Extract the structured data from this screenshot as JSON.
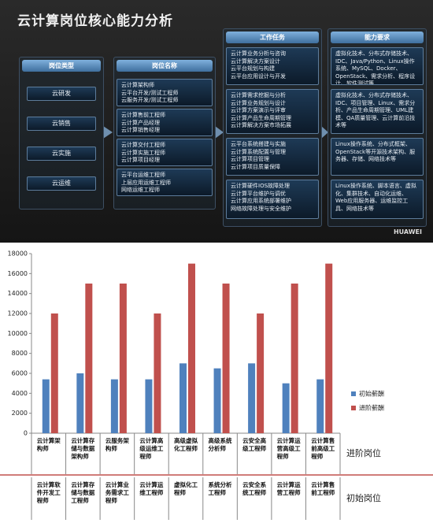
{
  "diagram": {
    "title": "云计算岗位核心能力分析",
    "brand": "HUAWEI",
    "column_headers": [
      "岗位类型",
      "岗位名称",
      "工作任务",
      "能力要求"
    ],
    "job_types": [
      "云研发",
      "云销售",
      "云实施",
      "云运维"
    ],
    "job_names": [
      [
        "云计算架构师",
        "云平台开发/测试工程师",
        "云服务开发/测试工程师"
      ],
      [
        "云计算售前工程师",
        "云计算产品经理",
        "云计算销售经理"
      ],
      [
        "云计算交付工程师",
        "云计算实施工程师",
        "云计算项目经理"
      ],
      [
        "云平台运维工程师",
        "上层应用运维工程师",
        "网络运维工程师"
      ]
    ],
    "tasks": [
      [
        "云计算业务分析与咨询",
        "云计算解决方案设计",
        "云平台规划与构建",
        "云平台应用设计与开发"
      ],
      [
        "云计算需求挖掘与分析",
        "云计算业务规划与设计",
        "云计算方案演示与评审",
        "云计算产品生命周期管理",
        "云计算解决方案市场拓展"
      ],
      [
        "云平台系统搭建与实施",
        "云计算系统配置与管理",
        "云计算项目管理",
        "云计算项目质量保障"
      ],
      [
        "云计算硬件IOS故障处理",
        "云计算平台维护与调优",
        "云计算应用系统部署维护",
        "网络故障处理与安全维护"
      ]
    ],
    "skills": [
      "虚拟化技术、分布式存储技术、IDC、Java/Python、Linux操作系统、MySQL、Docker、OpenStack、需求分析、程序设计、软件测试等",
      "虚拟化技术、分布式存储技术、IDC、项目管理、Linux、需求分析、产品生命周期管理、UML建模、QA质量管理、云计算前沿技术等",
      "Linux操作系统、分布式框架、OpenStack等开源技术架构、服务器、存储、网络技术等",
      "Linux操作系统、脚本语言、虚拟化、集群技术、自动化运维、Web应用服务器、运维监控工具、网络技术等"
    ]
  },
  "chart_data": {
    "type": "bar",
    "categories": [
      "云计算架构师",
      "云计算存储与数据架构师",
      "云服务架构师",
      "云计算高级运维工程师",
      "高级虚拟化工程师",
      "高级系统分析师",
      "云安全高级工程师",
      "云计算运营高级工程师",
      "云计算售前高级工程师"
    ],
    "initial_roles": [
      "云计算软件开发工程师",
      "云计算存储与数据工程师",
      "云计算业务需求工程师",
      "云计算运维工程师",
      "虚拟化工程师",
      "系统分析工程师",
      "云安全系统工程师",
      "云计算运营工程师",
      "云计算售前工程师"
    ],
    "row_labels": [
      "进阶岗位",
      "初始岗位"
    ],
    "series": [
      {
        "name": "初始薪酬",
        "color": "#4f81bd",
        "values": [
          5400,
          6000,
          5400,
          5400,
          7000,
          6500,
          7000,
          5000,
          5400
        ]
      },
      {
        "name": "进阶薪酬",
        "color": "#c0504d",
        "values": [
          12000,
          15000,
          15000,
          12000,
          17000,
          15000,
          12000,
          15000,
          17000
        ]
      }
    ],
    "ylim": [
      0,
      18000
    ],
    "yticks": [
      0,
      2000,
      4000,
      6000,
      8000,
      10000,
      12000,
      14000,
      16000,
      18000
    ],
    "grid": false,
    "legend": "right"
  }
}
